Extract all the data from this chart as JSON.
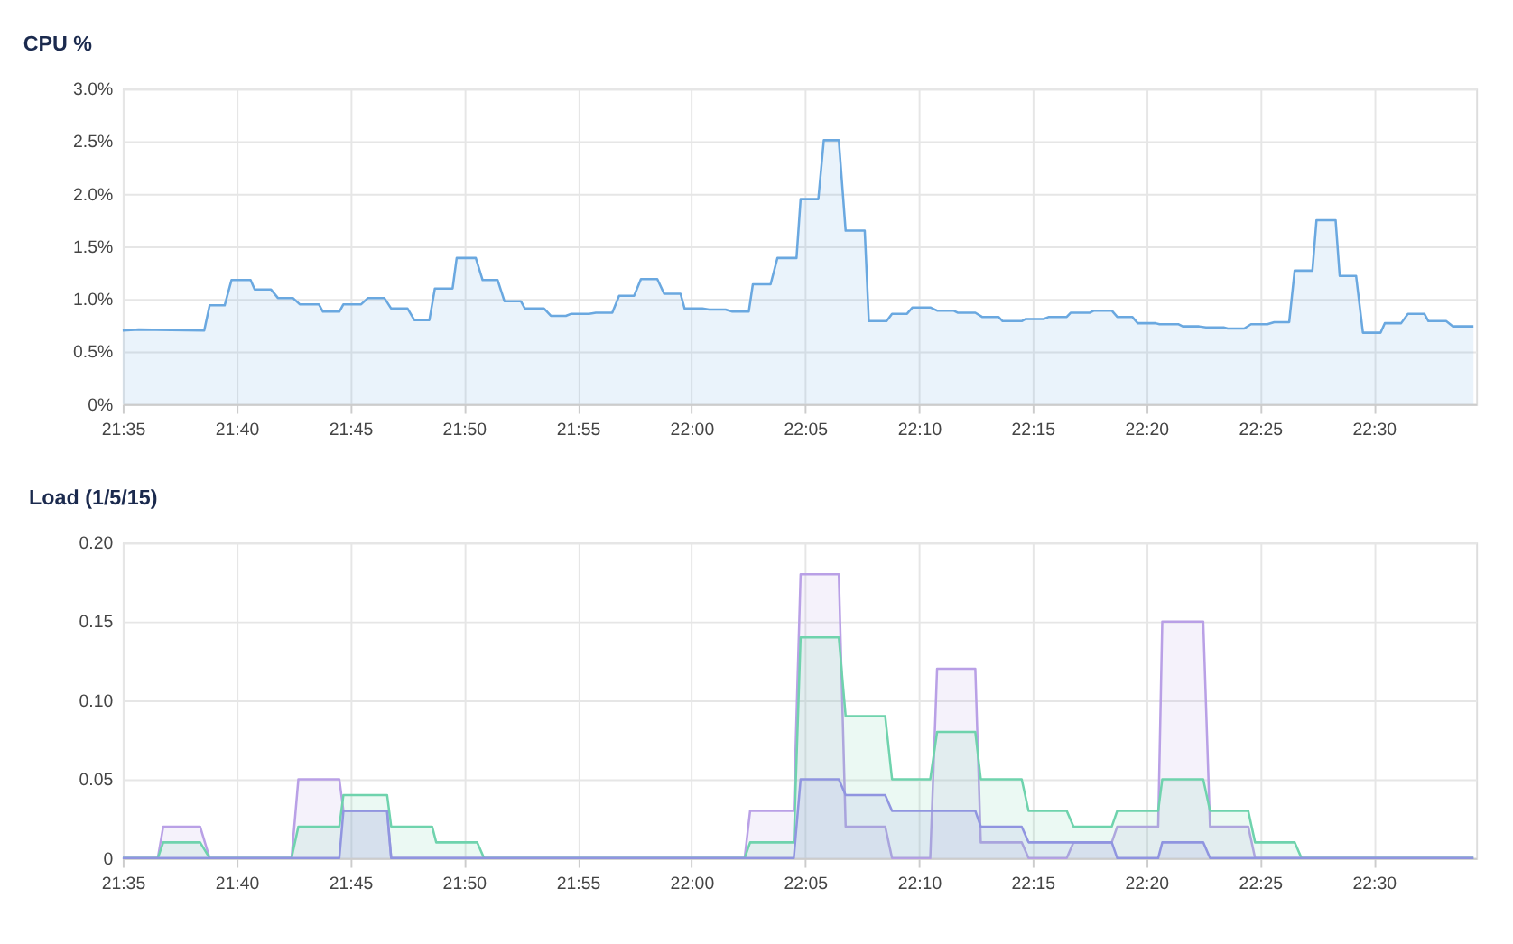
{
  "chart_data": [
    {
      "type": "area",
      "title": "CPU %",
      "grid": true,
      "xlim": [
        21.5833,
        22.575
      ],
      "xticks": [
        {
          "value": 21.5833,
          "label": "21:35"
        },
        {
          "value": 21.6667,
          "label": "21:40"
        },
        {
          "value": 21.75,
          "label": "21:45"
        },
        {
          "value": 21.8333,
          "label": "21:50"
        },
        {
          "value": 21.9167,
          "label": "21:55"
        },
        {
          "value": 22,
          "label": "22:00"
        },
        {
          "value": 22.0833,
          "label": "22:05"
        },
        {
          "value": 22.1667,
          "label": "22:10"
        },
        {
          "value": 22.25,
          "label": "22:15"
        },
        {
          "value": 22.3333,
          "label": "22:20"
        },
        {
          "value": 22.4167,
          "label": "22:25"
        },
        {
          "value": 22.5,
          "label": "22:30"
        }
      ],
      "ylim": [
        0,
        3
      ],
      "yticks": [
        {
          "value": 0,
          "label": "0%"
        },
        {
          "value": 0.5,
          "label": "0.5%"
        },
        {
          "value": 1,
          "label": "1.0%"
        },
        {
          "value": 1.5,
          "label": "1.5%"
        },
        {
          "value": 2,
          "label": "2.0%"
        },
        {
          "value": 2.5,
          "label": "2.5%"
        },
        {
          "value": 3,
          "label": "3.0%"
        }
      ],
      "x": [
        21.5833,
        21.595,
        21.643,
        21.647,
        21.658,
        21.663,
        21.677,
        21.68,
        21.692,
        21.697,
        21.708,
        21.713,
        21.727,
        21.73,
        21.742,
        21.745,
        21.758,
        21.763,
        21.775,
        21.78,
        21.792,
        21.797,
        21.808,
        21.812,
        21.825,
        21.828,
        21.842,
        21.847,
        21.858,
        21.863,
        21.875,
        21.878,
        21.892,
        21.897,
        21.908,
        21.912,
        21.925,
        21.93,
        21.942,
        21.947,
        21.958,
        21.963,
        21.975,
        21.98,
        21.992,
        21.995,
        22.008,
        22.013,
        22.025,
        22.03,
        22.042,
        22.045,
        22.058,
        22.063,
        22.077,
        22.08,
        22.093,
        22.097,
        22.108,
        22.113,
        22.127,
        22.13,
        22.143,
        22.147,
        22.158,
        22.162,
        22.175,
        22.18,
        22.192,
        22.195,
        22.208,
        22.213,
        22.225,
        22.228,
        22.242,
        22.245,
        22.258,
        22.262,
        22.275,
        22.278,
        22.292,
        22.295,
        22.308,
        22.312,
        22.323,
        22.327,
        22.34,
        22.343,
        22.357,
        22.36,
        22.372,
        22.377,
        22.39,
        22.393,
        22.405,
        22.41,
        22.422,
        22.427,
        22.438,
        22.442,
        22.455,
        22.458,
        22.472,
        22.475,
        22.487,
        22.492,
        22.505,
        22.508,
        22.52,
        22.525,
        22.537,
        22.54,
        22.553,
        22.558,
        22.573
      ],
      "series": [
        {
          "color": "#6aa8e0",
          "values": [
            0.7,
            0.71,
            0.7,
            0.94,
            0.94,
            1.18,
            1.18,
            1.09,
            1.09,
            1.01,
            1.01,
            0.95,
            0.95,
            0.88,
            0.88,
            0.95,
            0.95,
            1.01,
            1.01,
            0.91,
            0.91,
            0.8,
            0.8,
            1.1,
            1.1,
            1.39,
            1.39,
            1.18,
            1.18,
            0.98,
            0.98,
            0.91,
            0.91,
            0.84,
            0.84,
            0.86,
            0.86,
            0.87,
            0.87,
            1.03,
            1.03,
            1.19,
            1.19,
            1.05,
            1.05,
            0.91,
            0.91,
            0.9,
            0.9,
            0.88,
            0.88,
            1.14,
            1.14,
            1.39,
            1.39,
            1.95,
            1.95,
            2.51,
            2.51,
            1.65,
            1.65,
            0.79,
            0.79,
            0.86,
            0.86,
            0.92,
            0.92,
            0.89,
            0.89,
            0.87,
            0.87,
            0.83,
            0.83,
            0.79,
            0.79,
            0.81,
            0.81,
            0.83,
            0.83,
            0.87,
            0.87,
            0.89,
            0.89,
            0.83,
            0.83,
            0.77,
            0.77,
            0.76,
            0.76,
            0.74,
            0.74,
            0.73,
            0.73,
            0.72,
            0.72,
            0.76,
            0.76,
            0.78,
            0.78,
            1.27,
            1.27,
            1.75,
            1.75,
            1.22,
            1.22,
            0.68,
            0.68,
            0.77,
            0.77,
            0.86,
            0.86,
            0.79,
            0.79,
            0.74,
            0.74
          ]
        }
      ]
    },
    {
      "type": "area",
      "title": "Load (1/5/15)",
      "grid": true,
      "xlim": [
        21.5833,
        22.575
      ],
      "xticks": [
        {
          "value": 21.5833,
          "label": "21:35"
        },
        {
          "value": 21.6667,
          "label": "21:40"
        },
        {
          "value": 21.75,
          "label": "21:45"
        },
        {
          "value": 21.8333,
          "label": "21:50"
        },
        {
          "value": 21.9167,
          "label": "21:55"
        },
        {
          "value": 22,
          "label": "22:00"
        },
        {
          "value": 22.0833,
          "label": "22:05"
        },
        {
          "value": 22.1667,
          "label": "22:10"
        },
        {
          "value": 22.25,
          "label": "22:15"
        },
        {
          "value": 22.3333,
          "label": "22:20"
        },
        {
          "value": 22.4167,
          "label": "22:25"
        },
        {
          "value": 22.5,
          "label": "22:30"
        }
      ],
      "ylim": [
        0,
        0.2
      ],
      "yticks": [
        0,
        {
          "value": 0.05,
          "label": "0.05"
        },
        {
          "value": 0.1,
          "label": "0.10"
        },
        {
          "value": 0.15,
          "label": "0.15"
        },
        {
          "value": 0.2,
          "label": "0.20"
        }
      ],
      "x": [
        21.5833,
        21.609,
        21.613,
        21.64,
        21.647,
        21.707,
        21.712,
        21.742,
        21.745,
        21.777,
        21.78,
        21.81,
        21.813,
        21.843,
        21.848,
        22.039,
        22.043,
        22.075,
        22.08,
        22.108,
        22.113,
        22.142,
        22.147,
        22.175,
        22.18,
        22.208,
        22.212,
        22.242,
        22.247,
        22.275,
        22.28,
        22.308,
        22.312,
        22.342,
        22.345,
        22.375,
        22.38,
        22.408,
        22.413,
        22.442,
        22.447,
        22.573
      ],
      "series": [
        {
          "color": "#b9a0e6",
          "values": [
            0,
            0,
            0.02,
            0.02,
            0,
            0,
            0.05,
            0.05,
            0.03,
            0.03,
            0,
            0,
            0,
            0,
            0,
            0,
            0.03,
            0.03,
            0.18,
            0.18,
            0.02,
            0.02,
            0,
            0,
            0.12,
            0.12,
            0.01,
            0.01,
            0,
            0,
            0.01,
            0.01,
            0.02,
            0.02,
            0.15,
            0.15,
            0.02,
            0.02,
            0,
            0,
            0,
            0
          ]
        },
        {
          "color": "#6fd3ad",
          "values": [
            0,
            0,
            0.01,
            0.01,
            0,
            0,
            0.02,
            0.02,
            0.04,
            0.04,
            0.02,
            0.02,
            0.01,
            0.01,
            0,
            0,
            0.01,
            0.01,
            0.14,
            0.14,
            0.09,
            0.09,
            0.05,
            0.05,
            0.08,
            0.08,
            0.05,
            0.05,
            0.03,
            0.03,
            0.02,
            0.02,
            0.03,
            0.03,
            0.05,
            0.05,
            0.03,
            0.03,
            0.01,
            0.01,
            0,
            0
          ]
        },
        {
          "color": "#9095e0",
          "values": [
            0,
            0,
            0,
            0,
            0,
            0,
            0,
            0,
            0.03,
            0.03,
            0,
            0,
            0,
            0,
            0,
            0,
            0,
            0,
            0.05,
            0.05,
            0.04,
            0.04,
            0.03,
            0.03,
            0.03,
            0.03,
            0.02,
            0.02,
            0.01,
            0.01,
            0.01,
            0.01,
            0,
            0,
            0.01,
            0.01,
            0,
            0,
            0,
            0,
            0,
            0
          ]
        }
      ]
    }
  ]
}
